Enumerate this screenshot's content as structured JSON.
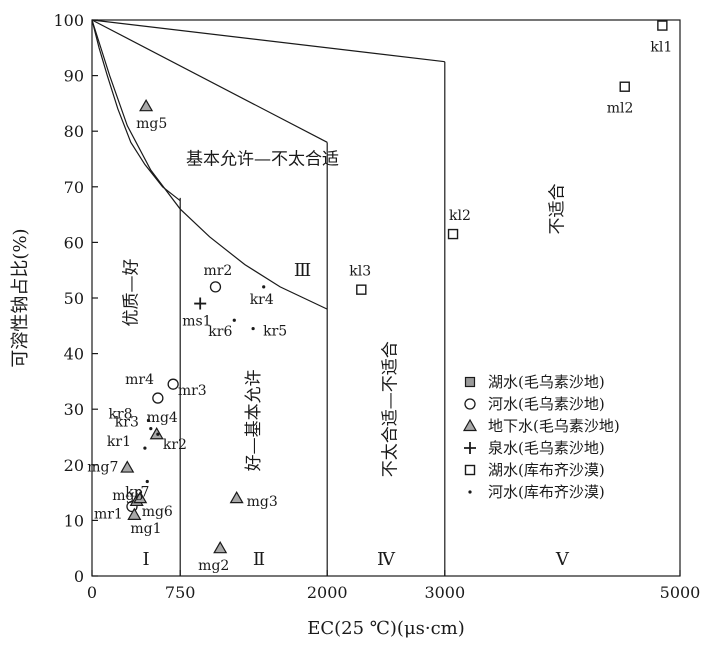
{
  "chart_data": {
    "type": "scatter",
    "xlabel": "EC(25 ℃)(μs·cm)",
    "ylabel": "可溶性钠占比(%)",
    "xlim": [
      0,
      5000
    ],
    "ylim": [
      0,
      100
    ],
    "x_ticks": [
      {
        "value": 0,
        "label": "0"
      },
      {
        "value": 750,
        "label": "750"
      },
      {
        "value": 2000,
        "label": "2000"
      },
      {
        "value": 3000,
        "label": "3000"
      },
      {
        "value": 5000,
        "label": "5000"
      }
    ],
    "y_ticks": [
      0,
      10,
      20,
      30,
      40,
      50,
      60,
      70,
      80,
      90,
      100
    ],
    "regions": [
      {
        "numeral": "Ⅰ",
        "label": "优质—好",
        "x": 460,
        "y": 2,
        "label_x": 380,
        "label_y": 51
      },
      {
        "numeral": "Ⅱ",
        "label": "好—基本允许",
        "x": 1420,
        "y": 2,
        "label_x": 1420,
        "label_y": 28
      },
      {
        "numeral": "Ⅲ",
        "label": "基本允许—不太合适",
        "x": 1790,
        "y": 54,
        "label_x": 1450,
        "label_y": 74
      },
      {
        "numeral": "Ⅳ",
        "label": "不太合适—不适合",
        "x": 2500,
        "y": 2,
        "label_x": 2580,
        "label_y": 30
      },
      {
        "numeral": "Ⅴ",
        "label": "不适合",
        "x": 4000,
        "y": 2,
        "label_x": 4000,
        "label_y": 66
      }
    ],
    "series": [
      {
        "name": "湖水(毛乌素沙地)",
        "marker": "square-filled",
        "points": []
      },
      {
        "name": "河水(毛乌素沙地)",
        "marker": "circle",
        "points": [
          {
            "label": "mr1",
            "x": 340,
            "y": 12.5
          },
          {
            "label": "mr2",
            "x": 1050,
            "y": 52
          },
          {
            "label": "mr3",
            "x": 560,
            "y": 32
          },
          {
            "label": "mr4",
            "x": 690,
            "y": 34.5
          }
        ]
      },
      {
        "name": "地下水(毛乌素沙地)",
        "marker": "triangle",
        "points": [
          {
            "label": "mg1",
            "x": 360,
            "y": 11
          },
          {
            "label": "mg2",
            "x": 1090,
            "y": 5
          },
          {
            "label": "mg3",
            "x": 1230,
            "y": 14
          },
          {
            "label": "mg4",
            "x": 550,
            "y": 25.5
          },
          {
            "label": "mg5",
            "x": 460,
            "y": 84.5
          },
          {
            "label": "mg6",
            "x": 380,
            "y": 13.5
          },
          {
            "label": "mg7",
            "x": 300,
            "y": 19.5
          },
          {
            "label": "mg8",
            "x": 410,
            "y": 14
          }
        ]
      },
      {
        "name": "泉水(毛乌素沙地)",
        "marker": "plus",
        "points": [
          {
            "label": "ms1",
            "x": 920,
            "y": 49
          }
        ]
      },
      {
        "name": "湖水(库布齐沙漠)",
        "marker": "square",
        "points": [
          {
            "label": "kl1",
            "x": 4850,
            "y": 99
          },
          {
            "label": "ml2",
            "x": 4530,
            "y": 88
          },
          {
            "label": "kl2",
            "x": 3070,
            "y": 61.5
          },
          {
            "label": "kl3",
            "x": 2290,
            "y": 51.5
          }
        ]
      },
      {
        "name": "河水(库布齐沙漠)",
        "marker": "dot",
        "points": [
          {
            "label": "kr1",
            "x": 450,
            "y": 23
          },
          {
            "label": "kr2",
            "x": 560,
            "y": 25.5
          },
          {
            "label": "kr3",
            "x": 500,
            "y": 26.5
          },
          {
            "label": "kr4",
            "x": 1460,
            "y": 52
          },
          {
            "label": "kr5",
            "x": 1370,
            "y": 44.5
          },
          {
            "label": "kr6",
            "x": 1210,
            "y": 46
          },
          {
            "label": "kr7",
            "x": 470,
            "y": 17
          },
          {
            "label": "kr8",
            "x": 480,
            "y": 28
          }
        ]
      }
    ]
  }
}
